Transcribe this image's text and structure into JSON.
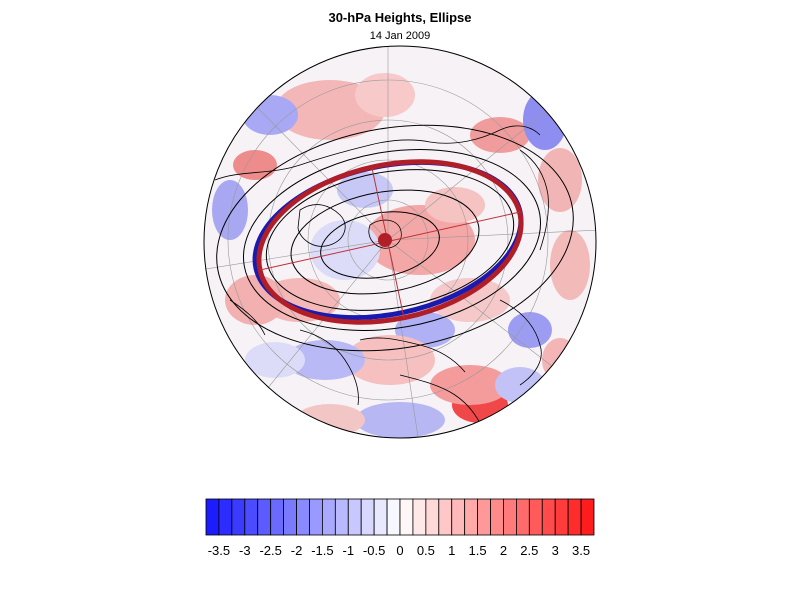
{
  "title": "30-hPa Heights, Ellipse",
  "subtitle": "14 Jan 2009",
  "colors": {
    "negative_max": "#1414ff",
    "positive_max": "#ff1414",
    "neutral": "#ffffff",
    "ellipse_blue": "#1a1ab0",
    "ellipse_red": "#b01e28",
    "contour": "#000000",
    "coastline": "#000000",
    "graticule": "#999999"
  },
  "map": {
    "projection": "orthographic-polar",
    "hemisphere": "northern",
    "graticule": true,
    "contours": true,
    "ellipse_fit": true
  },
  "colorbar": {
    "min": -3.75,
    "max": 3.75,
    "step": 0.25,
    "tick_labels": [
      "-3.5",
      "-3",
      "-2.5",
      "-2",
      "-1.5",
      "-1",
      "-0.5",
      "0",
      "0.5",
      "1",
      "1.5",
      "2",
      "2.5",
      "3",
      "3.5"
    ],
    "tick_values": [
      -3.5,
      -3,
      -2.5,
      -2,
      -1.5,
      -1,
      -0.5,
      0,
      0.5,
      1,
      1.5,
      2,
      2.5,
      3,
      3.5
    ]
  }
}
